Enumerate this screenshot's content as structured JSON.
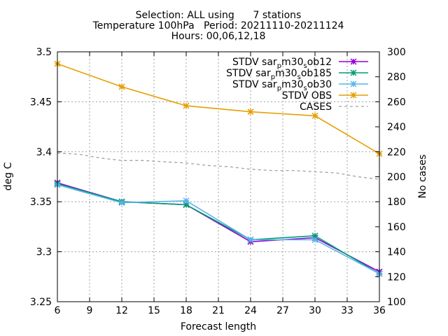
{
  "title_lines": [
    "Selection: ALL using      7 stations",
    "Temperature 100hPa   Period: 20211110-20211124",
    "Hours: 00,06,12,18"
  ],
  "chart_data": {
    "type": "line",
    "xlabel": "Forecast length",
    "ylabel": "deg C",
    "y2label": "No cases",
    "xlim": [
      6,
      36
    ],
    "ylim": [
      3.25,
      3.5
    ],
    "y2lim": [
      100,
      300
    ],
    "x_ticks": [
      "6",
      "9",
      "12",
      "15",
      "18",
      "21",
      "24",
      "27",
      "30",
      "33",
      "36"
    ],
    "y_ticks": [
      "3.25",
      "3.3",
      "3.35",
      "3.4",
      "3.45",
      "3.5"
    ],
    "y2_ticks": [
      "100",
      "120",
      "140",
      "160",
      "180",
      "200",
      "220",
      "240",
      "260",
      "280",
      "300"
    ],
    "grid": true,
    "legend_position": "top-right",
    "series": [
      {
        "name": "STDV sar_m30_ob12",
        "legend_parts": [
          [
            "STDV sar",
            false
          ],
          [
            "p",
            true
          ],
          [
            "m30",
            false
          ],
          [
            "s",
            true
          ],
          [
            "ob12",
            false
          ]
        ],
        "color": "#9400d3",
        "marker": "x",
        "axis": "y",
        "x": [
          6,
          12,
          18,
          24,
          30,
          36
        ],
        "values": [
          3.369,
          3.35,
          3.347,
          3.31,
          3.314,
          3.28
        ]
      },
      {
        "name": "STDV sar_m30_ob185",
        "legend_parts": [
          [
            "STDV sar",
            false
          ],
          [
            "p",
            true
          ],
          [
            "m30",
            false
          ],
          [
            "s",
            true
          ],
          [
            "ob185",
            false
          ]
        ],
        "color": "#009e73",
        "marker": "x",
        "axis": "y",
        "x": [
          6,
          12,
          18,
          24,
          30,
          36
        ],
        "values": [
          3.368,
          3.35,
          3.347,
          3.312,
          3.316,
          3.278
        ]
      },
      {
        "name": "STDV sar_m30_ob30",
        "legend_parts": [
          [
            "STDV sar",
            false
          ],
          [
            "p",
            true
          ],
          [
            "m30",
            false
          ],
          [
            "s",
            true
          ],
          [
            "ob30",
            false
          ]
        ],
        "color": "#56b4e9",
        "marker": "x",
        "axis": "y",
        "x": [
          6,
          12,
          18,
          24,
          30,
          36
        ],
        "values": [
          3.367,
          3.349,
          3.351,
          3.312,
          3.312,
          3.278
        ]
      },
      {
        "name": "STDV OBS",
        "legend_parts": [
          [
            "STDV OBS",
            false
          ]
        ],
        "color": "#e69f00",
        "marker": "x",
        "axis": "y",
        "x": [
          6,
          12,
          18,
          24,
          30,
          36
        ],
        "values": [
          3.488,
          3.465,
          3.446,
          3.44,
          3.436,
          3.398
        ]
      },
      {
        "name": "CASES",
        "legend_parts": [
          [
            "CASES",
            false
          ]
        ],
        "color": "#a0a0a0",
        "marker": "none",
        "dashed": true,
        "axis": "y2",
        "x": [
          6,
          8,
          10,
          12,
          14,
          16,
          18,
          20,
          22,
          24,
          26,
          28,
          30,
          32,
          34,
          36
        ],
        "values": [
          219,
          218,
          215,
          213,
          213,
          212,
          211,
          209,
          208,
          206,
          205,
          205,
          204,
          203,
          200,
          198
        ]
      }
    ]
  }
}
